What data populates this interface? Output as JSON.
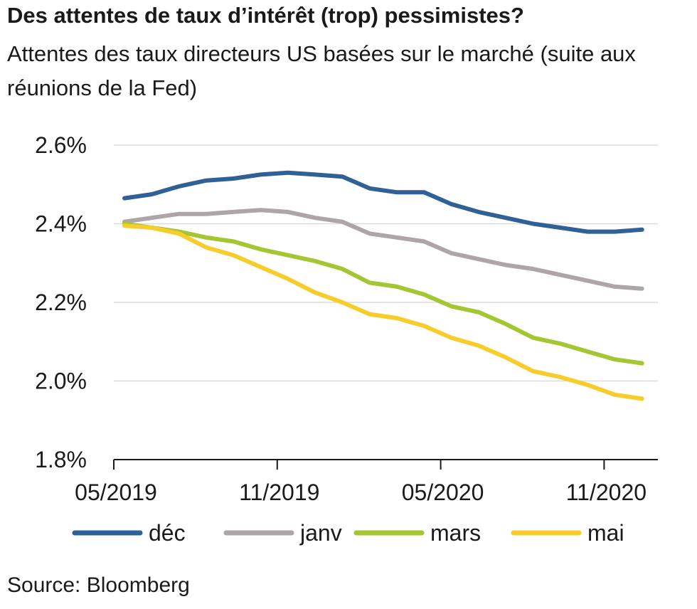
{
  "chart_data": {
    "type": "line",
    "title": "Des attentes de taux d’intérêt (trop) pessimistes?",
    "subtitle": "Attentes des taux directeurs US basées sur le marché (suite aux réunions de la Fed)",
    "source": "Source: Bloomberg",
    "ylim": [
      1.8,
      2.6
    ],
    "y_ticks": [
      2.6,
      2.4,
      2.2,
      2.0,
      1.8
    ],
    "y_tick_labels": [
      "2.6%",
      "2.4%",
      "2.2%",
      "2.0%",
      "1.8%"
    ],
    "x_tick_labels": [
      "05/2019",
      "11/2019",
      "05/2020",
      "11/2020"
    ],
    "x": [
      "05/2019",
      "06/2019",
      "07/2019",
      "08/2019",
      "09/2019",
      "10/2019",
      "11/2019",
      "12/2019",
      "01/2020",
      "02/2020",
      "03/2020",
      "04/2020",
      "05/2020",
      "06/2020",
      "07/2020",
      "08/2020",
      "09/2020",
      "10/2020",
      "11/2020",
      "12/2020"
    ],
    "grid": true,
    "legend_position": "bottom",
    "series": [
      {
        "name": "déc",
        "color": "#2f6196",
        "values": [
          2.465,
          2.475,
          2.495,
          2.51,
          2.515,
          2.525,
          2.53,
          2.525,
          2.52,
          2.49,
          2.48,
          2.48,
          2.45,
          2.43,
          2.415,
          2.4,
          2.39,
          2.38,
          2.38,
          2.385
        ]
      },
      {
        "name": "janv",
        "color": "#aea6a6",
        "values": [
          2.405,
          2.415,
          2.425,
          2.425,
          2.43,
          2.435,
          2.43,
          2.415,
          2.405,
          2.375,
          2.365,
          2.355,
          2.325,
          2.31,
          2.295,
          2.285,
          2.27,
          2.255,
          2.24,
          2.235
        ]
      },
      {
        "name": "mars",
        "color": "#a3c632",
        "values": [
          2.4,
          2.39,
          2.38,
          2.365,
          2.355,
          2.335,
          2.32,
          2.305,
          2.285,
          2.25,
          2.24,
          2.22,
          2.19,
          2.175,
          2.145,
          2.11,
          2.095,
          2.075,
          2.055,
          2.045
        ]
      },
      {
        "name": "mai",
        "color": "#f7cd2c",
        "values": [
          2.395,
          2.39,
          2.375,
          2.34,
          2.32,
          2.29,
          2.26,
          2.225,
          2.2,
          2.17,
          2.16,
          2.14,
          2.11,
          2.09,
          2.06,
          2.025,
          2.01,
          1.99,
          1.965,
          1.955
        ]
      }
    ]
  }
}
